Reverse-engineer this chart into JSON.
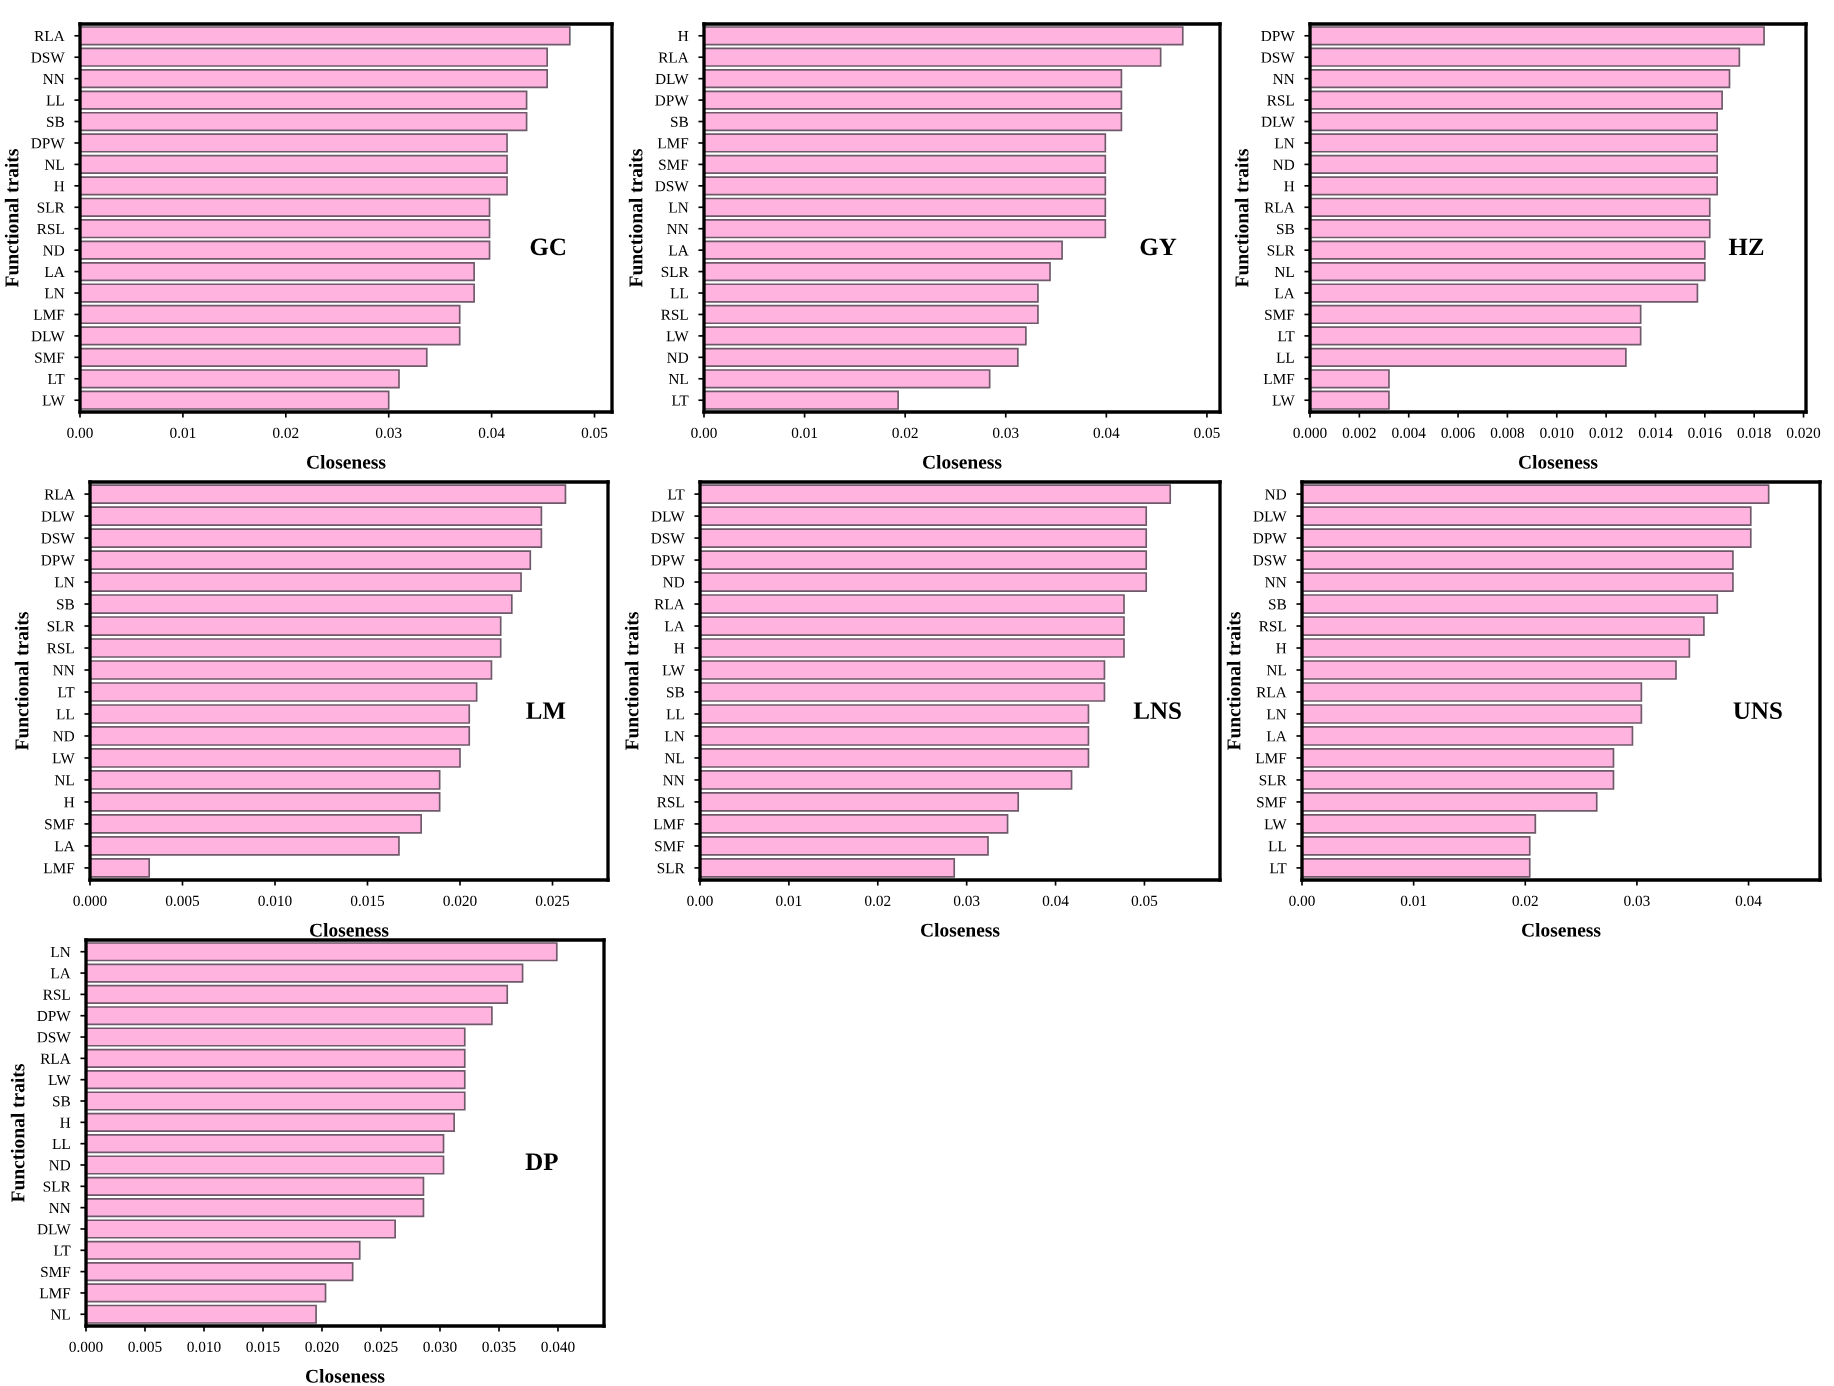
{
  "chart_data": [
    {
      "type": "bar",
      "orientation": "horizontal",
      "xlabel": "Closeness",
      "ylabel": "Functional traits",
      "annotations": [
        "GC"
      ],
      "color": "#ffb3de",
      "grid": false,
      "legend": false,
      "categories": [
        "RLA",
        "DSW",
        "NN",
        "LL",
        "SB",
        "DPW",
        "NL",
        "H",
        "SLR",
        "RSL",
        "ND",
        "LA",
        "LN",
        "LMF",
        "DLW",
        "SMF",
        "LT",
        "LW"
      ],
      "values": [
        0.0476,
        0.0454,
        0.0454,
        0.0434,
        0.0434,
        0.0415,
        0.0415,
        0.0415,
        0.0398,
        0.0398,
        0.0398,
        0.0383,
        0.0383,
        0.0369,
        0.0369,
        0.0337,
        0.031,
        0.03
      ],
      "xlim": [
        0,
        0.0517
      ],
      "xticks": [
        {
          "value": 0,
          "label": "0.00"
        },
        0.01,
        0.02,
        0.03,
        0.04,
        0.05
      ]
    },
    {
      "type": "bar",
      "orientation": "horizontal",
      "xlabel": "Closeness",
      "ylabel": "Functional traits",
      "annotations": [
        "GY"
      ],
      "color": "#ffb3de",
      "grid": false,
      "legend": false,
      "categories": [
        "H",
        "RLA",
        "DLW",
        "DPW",
        "SB",
        "LMF",
        "SMF",
        "DSW",
        "LN",
        "NN",
        "LA",
        "SLR",
        "LL",
        "RSL",
        "LW",
        "ND",
        "NL",
        "LT"
      ],
      "values": [
        0.0476,
        0.0454,
        0.0415,
        0.0415,
        0.0415,
        0.0399,
        0.0399,
        0.0399,
        0.0399,
        0.0399,
        0.0356,
        0.0344,
        0.0332,
        0.0332,
        0.032,
        0.0312,
        0.0284,
        0.0193
      ],
      "xlim": [
        0,
        0.0513
      ],
      "xticks": [
        {
          "value": 0,
          "label": "0.00"
        },
        0.01,
        0.02,
        0.03,
        0.04,
        0.05
      ]
    },
    {
      "type": "bar",
      "orientation": "horizontal",
      "xlabel": "Closeness",
      "ylabel": "Functional traits",
      "annotations": [
        "HZ"
      ],
      "color": "#ffb3de",
      "grid": false,
      "legend": false,
      "categories": [
        "DPW",
        "DSW",
        "NN",
        "RSL",
        "DLW",
        "LN",
        "ND",
        "H",
        "RLA",
        "SB",
        "SLR",
        "NL",
        "LA",
        "SMF",
        "LT",
        "LL",
        "LMF",
        "LW"
      ],
      "values": [
        0.0184,
        0.0174,
        0.017,
        0.0167,
        0.0165,
        0.0165,
        0.0165,
        0.0165,
        0.0162,
        0.0162,
        0.016,
        0.016,
        0.0157,
        0.0134,
        0.0134,
        0.0128,
        0.0032,
        0.0032
      ],
      "xlim": [
        0,
        0.0201
      ],
      "xticks": [
        {
          "value": 0,
          "label": "0.000"
        },
        0.002,
        0.004,
        0.006,
        0.008,
        {
          "value": 0.01,
          "label": "0.010"
        },
        0.012,
        0.014,
        0.016,
        0.018,
        {
          "value": 0.02,
          "label": "0.020"
        }
      ]
    },
    {
      "type": "bar",
      "orientation": "horizontal",
      "xlabel": "Closeness",
      "ylabel": "Functional traits",
      "annotations": [
        "LM"
      ],
      "color": "#ffb3de",
      "grid": false,
      "legend": false,
      "categories": [
        "RLA",
        "DLW",
        "DSW",
        "DPW",
        "LN",
        "SB",
        "SLR",
        "RSL",
        "NN",
        "LT",
        "LL",
        "ND",
        "LW",
        "NL",
        "H",
        "SMF",
        "LA",
        "LMF"
      ],
      "values": [
        0.0257,
        0.0244,
        0.0244,
        0.0238,
        0.0233,
        0.0228,
        0.0222,
        0.0222,
        0.0217,
        0.0209,
        0.0205,
        0.0205,
        0.02,
        0.0189,
        0.0189,
        0.0179,
        0.0167,
        0.0032
      ],
      "xlim": [
        0,
        0.028
      ],
      "xticks": [
        {
          "value": 0,
          "label": "0.000"
        },
        0.005,
        {
          "value": 0.01,
          "label": "0.010"
        },
        0.015,
        {
          "value": 0.02,
          "label": "0.020"
        },
        0.025
      ]
    },
    {
      "type": "bar",
      "orientation": "horizontal",
      "xlabel": "Closeness",
      "ylabel": "Functional traits",
      "annotations": [
        "LNS"
      ],
      "color": "#ffb3de",
      "grid": false,
      "legend": false,
      "categories": [
        "LT",
        "DLW",
        "DSW",
        "DPW",
        "ND",
        "RLA",
        "LA",
        "H",
        "LW",
        "SB",
        "LL",
        "LN",
        "NL",
        "NN",
        "RSL",
        "LMF",
        "SMF",
        "SLR"
      ],
      "values": [
        0.0529,
        0.0502,
        0.0502,
        0.0502,
        0.0502,
        0.0477,
        0.0477,
        0.0477,
        0.0455,
        0.0455,
        0.0437,
        0.0437,
        0.0437,
        0.0418,
        0.0358,
        0.0346,
        0.0324,
        0.0286
      ],
      "xlim": [
        0,
        0.0585
      ],
      "xticks": [
        {
          "value": 0,
          "label": "0.00"
        },
        0.01,
        0.02,
        0.03,
        0.04,
        0.05
      ]
    },
    {
      "type": "bar",
      "orientation": "horizontal",
      "xlabel": "Closeness",
      "ylabel": "Functional traits",
      "annotations": [
        "UNS"
      ],
      "color": "#ffb3de",
      "grid": false,
      "legend": false,
      "categories": [
        "ND",
        "DLW",
        "DPW",
        "DSW",
        "NN",
        "SB",
        "RSL",
        "H",
        "NL",
        "RLA",
        "LN",
        "LA",
        "LMF",
        "SLR",
        "SMF",
        "LW",
        "LL",
        "LT"
      ],
      "values": [
        0.0418,
        0.0402,
        0.0402,
        0.0386,
        0.0386,
        0.0372,
        0.036,
        0.0347,
        0.0335,
        0.0304,
        0.0304,
        0.0296,
        0.0279,
        0.0279,
        0.0264,
        0.0209,
        0.0204,
        0.0204
      ],
      "xlim": [
        0,
        0.0464
      ],
      "xticks": [
        {
          "value": 0,
          "label": "0.00"
        },
        0.01,
        0.02,
        0.03,
        0.04
      ]
    },
    {
      "type": "bar",
      "orientation": "horizontal",
      "xlabel": "Closeness",
      "ylabel": "Functional traits",
      "annotations": [
        "DP"
      ],
      "color": "#ffb3de",
      "grid": false,
      "legend": false,
      "categories": [
        "LN",
        "LA",
        "RSL",
        "DPW",
        "DSW",
        "RLA",
        "LW",
        "SB",
        "H",
        "LL",
        "ND",
        "SLR",
        "NN",
        "DLW",
        "LT",
        "SMF",
        "LMF",
        "NL"
      ],
      "values": [
        0.0399,
        0.037,
        0.0357,
        0.0344,
        0.0321,
        0.0321,
        0.0321,
        0.0321,
        0.0312,
        0.0303,
        0.0303,
        0.0286,
        0.0286,
        0.0262,
        0.0232,
        0.0226,
        0.0203,
        0.0195
      ],
      "xlim": [
        0,
        0.0439
      ],
      "xticks": [
        {
          "value": 0,
          "label": "0.000"
        },
        0.005,
        {
          "value": 0.01,
          "label": "0.010"
        },
        0.015,
        {
          "value": 0.02,
          "label": "0.020"
        },
        0.025,
        {
          "value": 0.03,
          "label": "0.030"
        },
        0.035,
        {
          "value": 0.04,
          "label": "0.040"
        }
      ]
    }
  ]
}
